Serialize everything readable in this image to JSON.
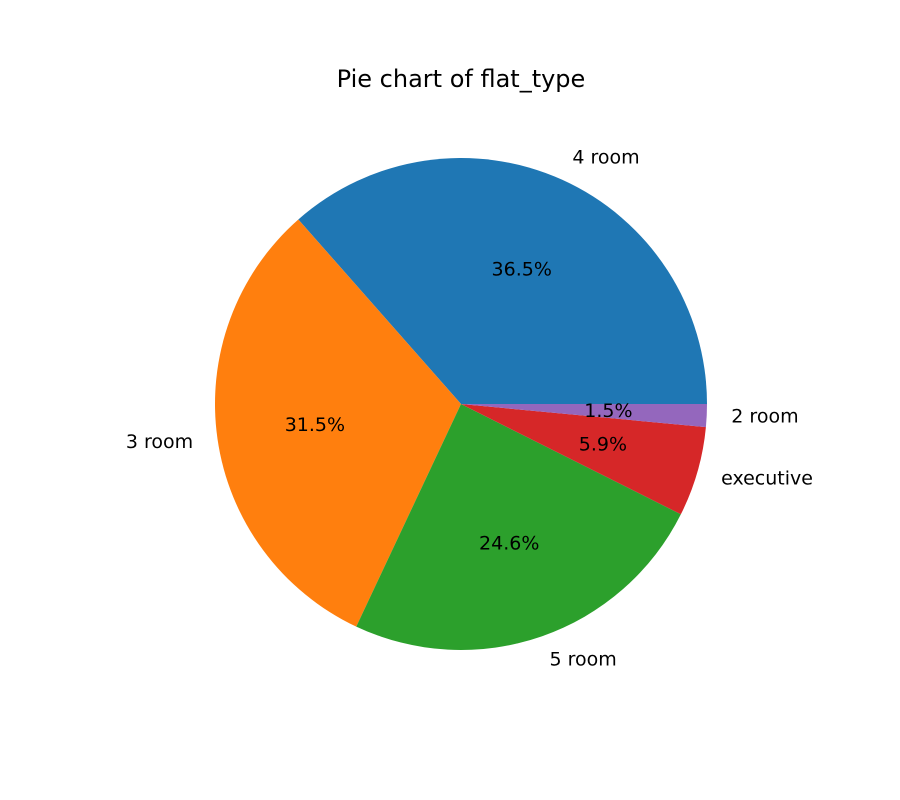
{
  "chart_data": {
    "type": "pie",
    "title": "Pie chart of flat_type",
    "start_angle_deg": 0,
    "direction": "counterclockwise",
    "slices": [
      {
        "label": "4 room",
        "value": 36.5,
        "pct_label": "36.5%",
        "color": "#1f77b4"
      },
      {
        "label": "3 room",
        "value": 31.5,
        "pct_label": "31.5%",
        "color": "#ff7f0e"
      },
      {
        "label": "5 room",
        "value": 24.6,
        "pct_label": "24.6%",
        "color": "#2ca02c"
      },
      {
        "label": "executive",
        "value": 5.9,
        "pct_label": "5.9%",
        "color": "#d62728"
      },
      {
        "label": "2 room",
        "value": 1.5,
        "pct_label": "1.5%",
        "color": "#9467bd"
      }
    ]
  }
}
